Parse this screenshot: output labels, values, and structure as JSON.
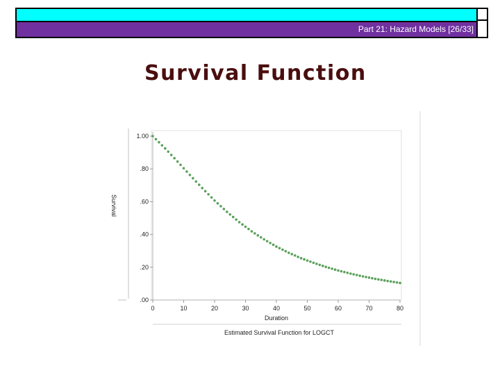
{
  "header": {
    "slide_label": "Part 21: Hazard Models [26/33]",
    "top_color": "#00ffff",
    "bar_color": "#7030a0"
  },
  "slide": {
    "title": "Survival Function"
  },
  "chart_data": {
    "type": "scatter",
    "title": "",
    "footer": "Estimated Survival Function for LOGCT",
    "xlabel": "Duration",
    "ylabel": "Survival",
    "xlim": [
      0,
      80
    ],
    "ylim": [
      0,
      1
    ],
    "xticks": [
      "0",
      "10",
      "20",
      "30",
      "40",
      "50",
      "60",
      "70",
      "80"
    ],
    "yticks": [
      ".00",
      ".20",
      ".40",
      ".60",
      ".80",
      "1.00"
    ],
    "grid": false,
    "marker_color": "#5aa05a",
    "series": [
      {
        "x": [
          0,
          4,
          8,
          12,
          16,
          20,
          24,
          28,
          32,
          36,
          40,
          44,
          48,
          52,
          56,
          60,
          64,
          68,
          72,
          76,
          80
        ],
        "y": [
          1.0,
          0.925,
          0.845,
          0.763,
          0.683,
          0.607,
          0.538,
          0.475,
          0.419,
          0.37,
          0.326,
          0.288,
          0.255,
          0.227,
          0.202,
          0.18,
          0.161,
          0.144,
          0.129,
          0.116,
          0.104
        ]
      }
    ]
  }
}
